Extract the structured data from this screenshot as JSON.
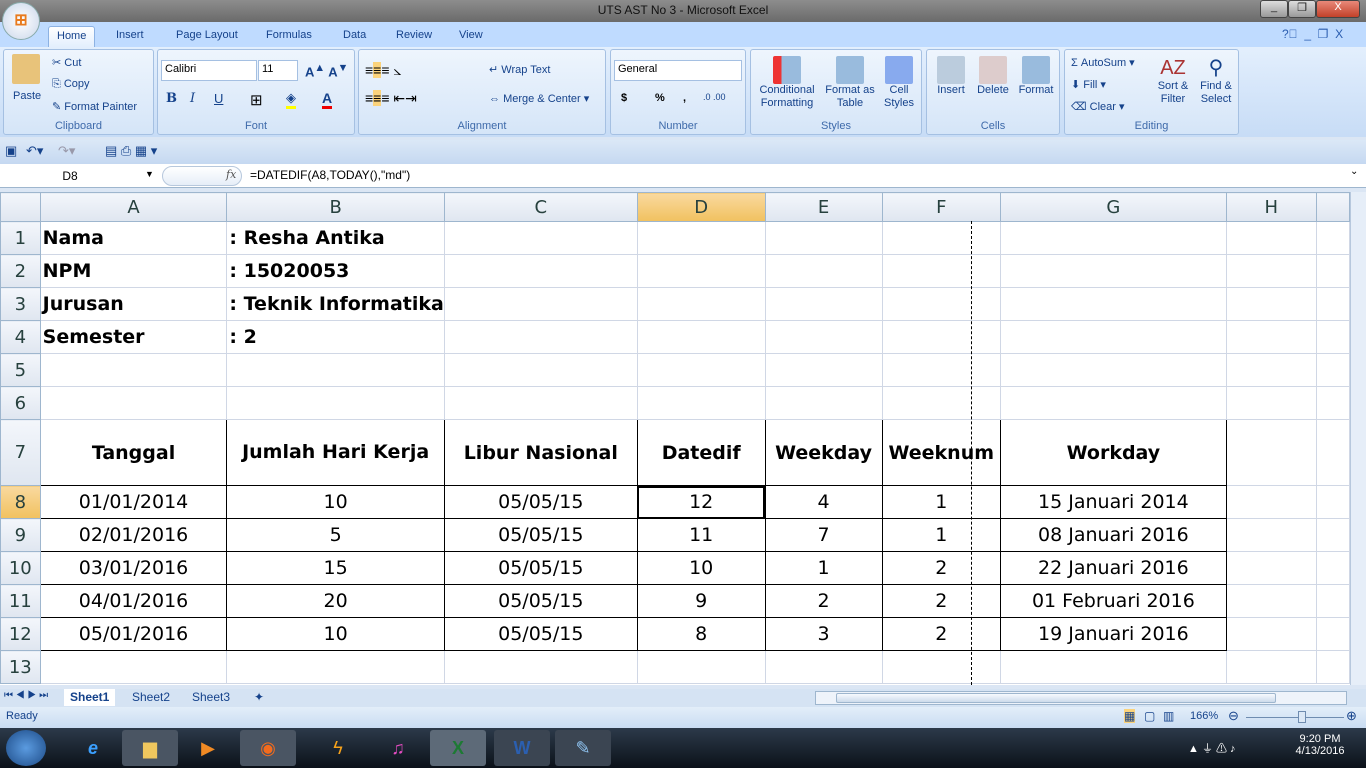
{
  "window": {
    "title": "UTS AST No 3 - Microsoft Excel",
    "minimize": "_",
    "restore": "❐",
    "close": "X"
  },
  "tabs": [
    "Home",
    "Insert",
    "Page Layout",
    "Formulas",
    "Data",
    "Review",
    "View"
  ],
  "ribbon": {
    "clipboard": {
      "label": "Clipboard",
      "paste": "Paste",
      "cut": "Cut",
      "copy": "Copy",
      "format_painter": "Format Painter"
    },
    "font": {
      "label": "Font",
      "name": "Calibri",
      "size": "11",
      "bold": "B",
      "italic": "I",
      "underline": "U"
    },
    "alignment": {
      "label": "Alignment",
      "wrap": "Wrap Text",
      "merge": "Merge & Center"
    },
    "number": {
      "label": "Number",
      "format": "General",
      "currency": "$",
      "percent": "%",
      "comma": ","
    },
    "styles": {
      "label": "Styles",
      "conditional": "Conditional Formatting",
      "format_table": "Format as Table",
      "cell_styles": "Cell Styles"
    },
    "cells": {
      "label": "Cells",
      "insert": "Insert",
      "delete": "Delete",
      "format": "Format"
    },
    "editing": {
      "label": "Editing",
      "autosum": "AutoSum",
      "fill": "Fill",
      "clear": "Clear",
      "sort": "Sort & Filter",
      "find": "Find & Select"
    }
  },
  "formula_bar": {
    "name_box": "D8",
    "fx": "fx",
    "formula": "=DATEDIF(A8,TODAY(),\"md\")"
  },
  "columns": [
    "A",
    "B",
    "C",
    "D",
    "E",
    "F",
    "G",
    "H"
  ],
  "rows": [
    "1",
    "2",
    "3",
    "4",
    "5",
    "6",
    "7",
    "8",
    "9",
    "10",
    "11",
    "12",
    "13"
  ],
  "info": [
    {
      "label": "Nama",
      "value": ": Resha Antika"
    },
    {
      "label": "NPM",
      "value": ": 15020053"
    },
    {
      "label": "Jurusan",
      "value": ": Teknik Informatika"
    },
    {
      "label": "Semester",
      "value": ": 2"
    }
  ],
  "table": {
    "headers": [
      "Tanggal",
      "Jumlah Hari Kerja",
      "Libur Nasional",
      "Datedif",
      "Weekday",
      "Weeknum",
      "Workday"
    ],
    "rows": [
      [
        "01/01/2014",
        "10",
        "05/05/15",
        "12",
        "4",
        "1",
        "15 Januari 2014"
      ],
      [
        "02/01/2016",
        "5",
        "05/05/15",
        "11",
        "7",
        "1",
        "08 Januari 2016"
      ],
      [
        "03/01/2016",
        "15",
        "05/05/15",
        "10",
        "1",
        "2",
        "22 Januari 2016"
      ],
      [
        "04/01/2016",
        "20",
        "05/05/15",
        "9",
        "2",
        "2",
        "01 Februari 2016"
      ],
      [
        "05/01/2016",
        "10",
        "05/05/15",
        "8",
        "3",
        "2",
        "19 Januari 2016"
      ]
    ]
  },
  "sheets": [
    "Sheet1",
    "Sheet2",
    "Sheet3"
  ],
  "status": {
    "text": "Ready",
    "zoom": "166%",
    "zoom_level_percent": 166
  },
  "taskbar": {
    "time": "9:20 PM",
    "date": "4/13/2016"
  }
}
